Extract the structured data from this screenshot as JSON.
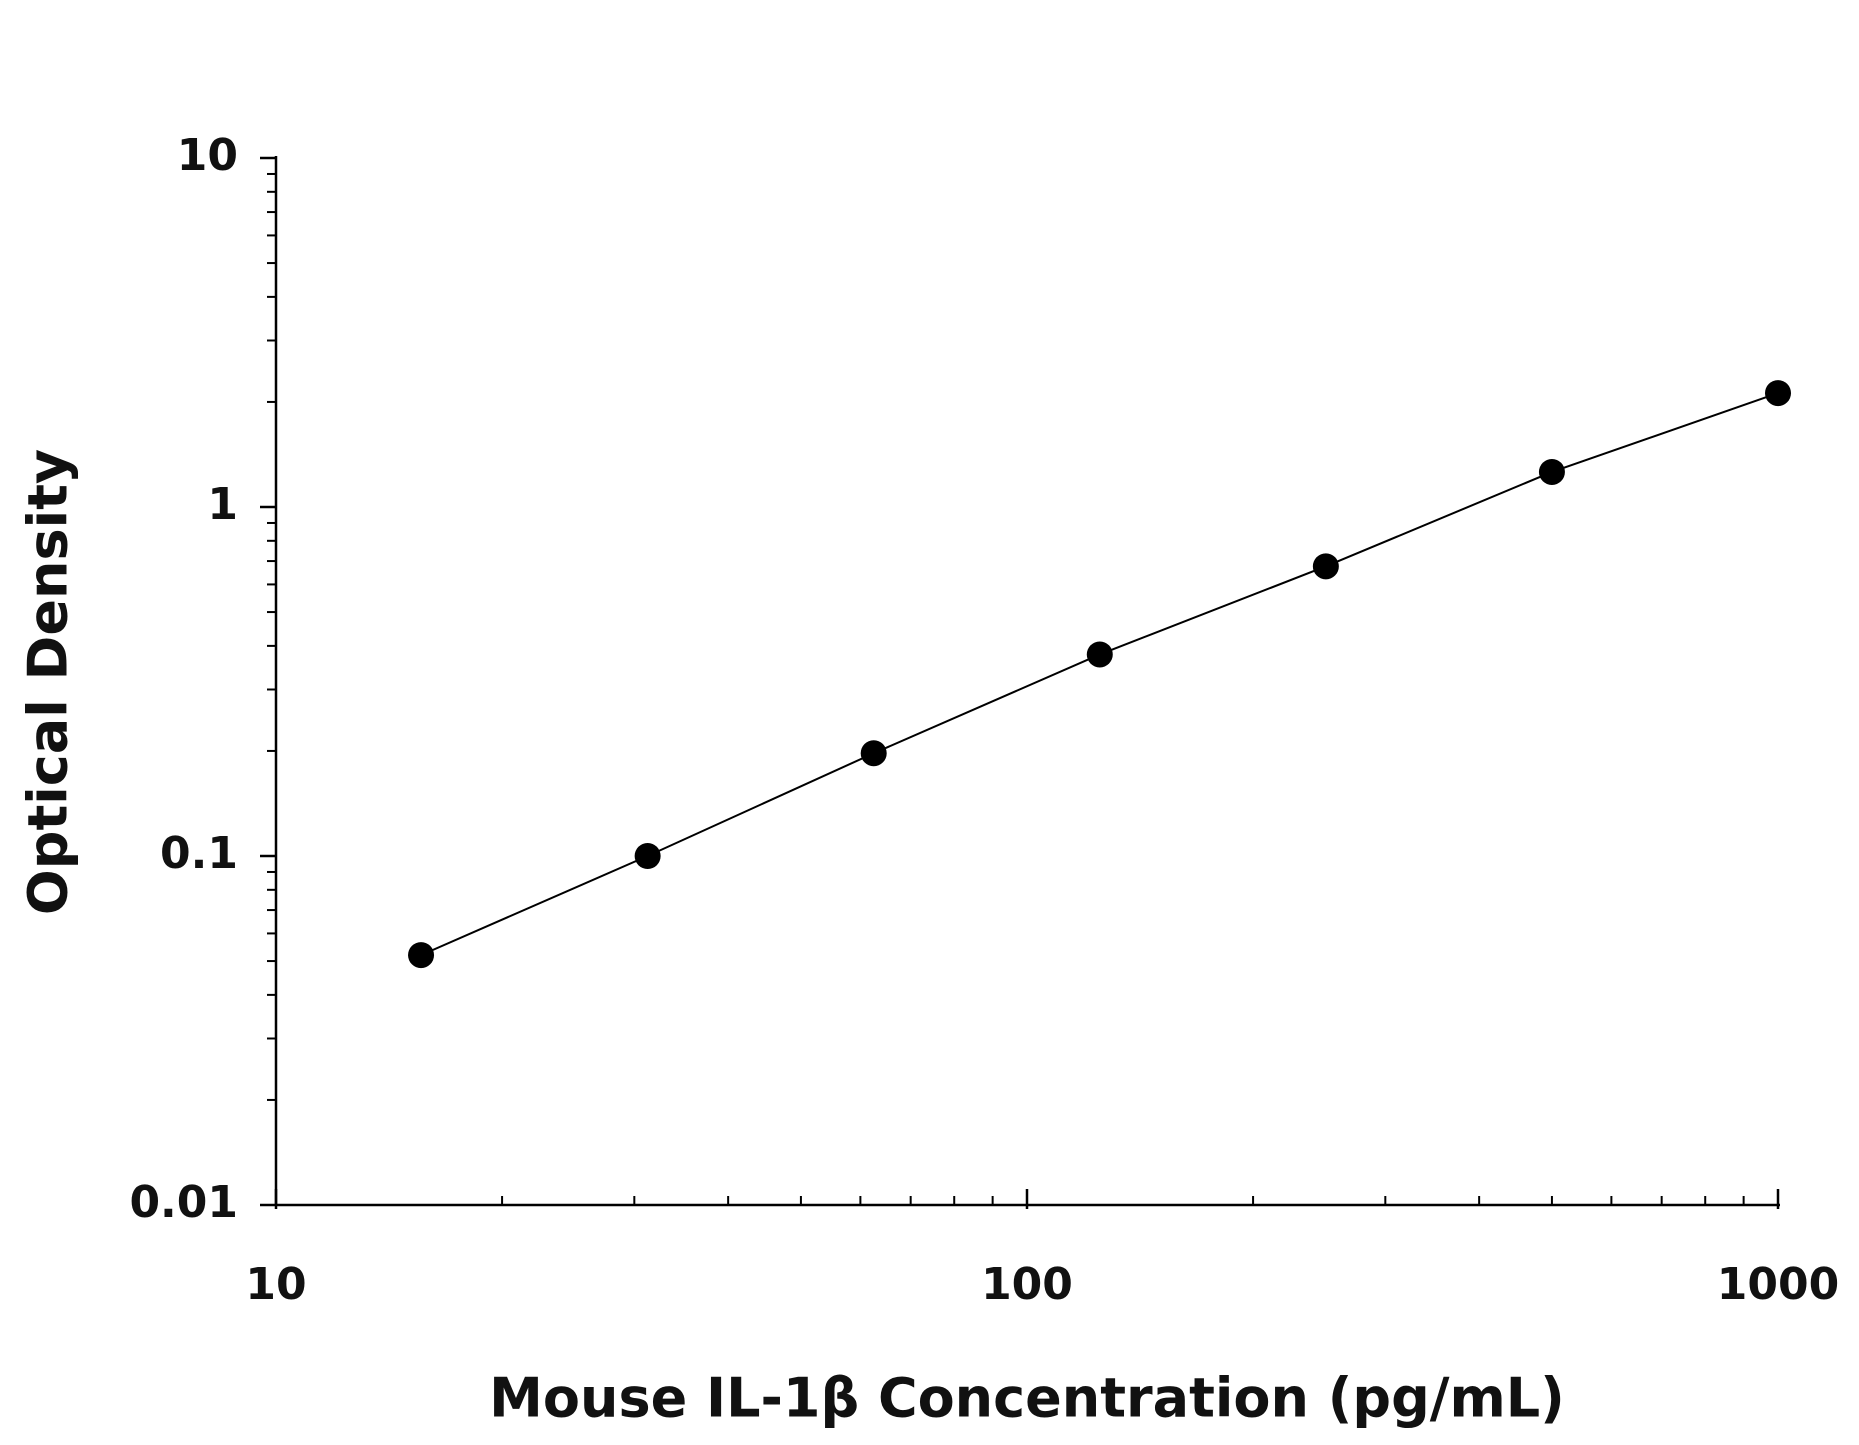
{
  "chart_data": {
    "type": "scatter",
    "xlabel": "Mouse IL-1β Concentration (pg/mL)",
    "ylabel": "Optical Density",
    "xscale": "log",
    "yscale": "log",
    "xlim": [
      10,
      1000
    ],
    "ylim": [
      0.01,
      10
    ],
    "xticks": [
      10,
      100,
      1000
    ],
    "yticks": [
      0.01,
      0.1,
      1,
      10
    ],
    "xminor_ticks": [
      20,
      30,
      40,
      50,
      60,
      70,
      80,
      90,
      200,
      300,
      400,
      500,
      600,
      700,
      800,
      900
    ],
    "yminor_ticks": [
      0.02,
      0.03,
      0.04,
      0.05,
      0.06,
      0.07,
      0.08,
      0.09,
      0.2,
      0.3,
      0.4,
      0.5,
      0.6,
      0.7,
      0.8,
      0.9,
      2,
      3,
      4,
      5,
      6,
      7,
      8,
      9
    ],
    "series": [
      {
        "color": "#000000",
        "x": [
          15.6,
          31.25,
          62.5,
          125,
          250,
          500,
          1000
        ],
        "values": [
          0.052,
          0.1,
          0.197,
          0.378,
          0.676,
          1.26,
          2.12
        ]
      }
    ]
  }
}
